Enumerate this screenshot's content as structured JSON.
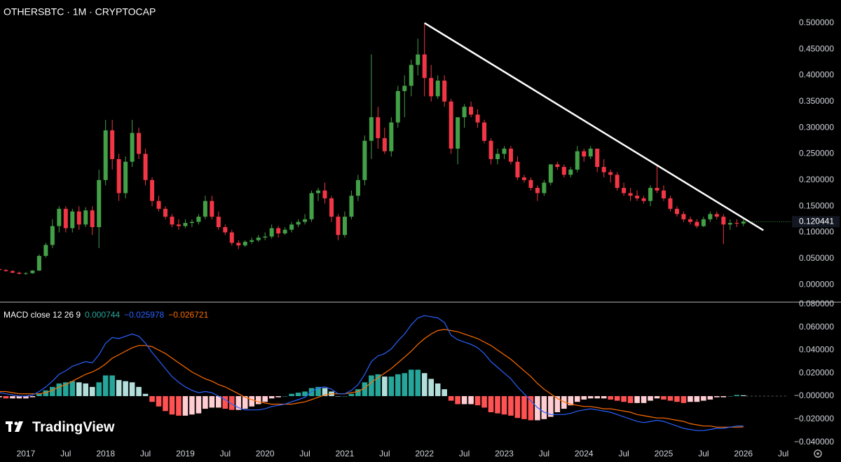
{
  "chart_data": [
    {
      "type": "candlestick",
      "title": "OTHERSBTC · 1M · CRYPTOCAP",
      "watermark": "TradingView",
      "x": [
        "2016-09",
        "2016-10",
        "2016-11",
        "2016-12",
        "2017-01",
        "2017-02",
        "2017-03",
        "2017-04",
        "2017-05",
        "2017-06",
        "2017-07",
        "2017-08",
        "2017-09",
        "2017-10",
        "2017-11",
        "2017-12",
        "2018-01",
        "2018-02",
        "2018-03",
        "2018-04",
        "2018-05",
        "2018-06",
        "2018-07",
        "2018-08",
        "2018-09",
        "2018-10",
        "2018-11",
        "2018-12",
        "2019-01",
        "2019-02",
        "2019-03",
        "2019-04",
        "2019-05",
        "2019-06",
        "2019-07",
        "2019-08",
        "2019-09",
        "2019-10",
        "2019-11",
        "2019-12",
        "2020-01",
        "2020-02",
        "2020-03",
        "2020-04",
        "2020-05",
        "2020-06",
        "2020-07",
        "2020-08",
        "2020-09",
        "2020-10",
        "2020-11",
        "2020-12",
        "2021-01",
        "2021-02",
        "2021-03",
        "2021-04",
        "2021-05",
        "2021-06",
        "2021-07",
        "2021-08",
        "2021-09",
        "2021-10",
        "2021-11",
        "2021-12",
        "2022-01",
        "2022-02",
        "2022-03",
        "2022-04",
        "2022-05",
        "2022-06",
        "2022-07",
        "2022-08",
        "2022-09",
        "2022-10",
        "2022-11",
        "2022-12",
        "2023-01",
        "2023-02",
        "2023-03",
        "2023-04",
        "2023-05",
        "2023-06",
        "2023-07",
        "2023-08",
        "2023-09",
        "2023-10",
        "2023-11",
        "2023-12",
        "2024-01",
        "2024-02",
        "2024-03",
        "2024-04",
        "2024-05",
        "2024-06",
        "2024-07",
        "2024-08",
        "2024-09",
        "2024-10",
        "2024-11",
        "2024-12",
        "2025-01",
        "2025-02",
        "2025-03",
        "2025-04",
        "2025-05",
        "2025-06",
        "2025-07",
        "2025-08",
        "2025-09",
        "2025-10",
        "2025-11",
        "2025-12",
        "2026-01"
      ],
      "open": [
        0.03,
        0.028,
        0.026,
        0.023,
        0.021,
        0.022,
        0.027,
        0.055,
        0.076,
        0.112,
        0.145,
        0.108,
        0.14,
        0.115,
        0.142,
        0.11,
        0.2,
        0.295,
        0.24,
        0.175,
        0.235,
        0.29,
        0.25,
        0.2,
        0.16,
        0.145,
        0.13,
        0.115,
        0.112,
        0.118,
        0.12,
        0.13,
        0.16,
        0.13,
        0.11,
        0.1,
        0.08,
        0.075,
        0.082,
        0.085,
        0.09,
        0.092,
        0.108,
        0.098,
        0.105,
        0.115,
        0.12,
        0.125,
        0.175,
        0.18,
        0.165,
        0.13,
        0.095,
        0.13,
        0.17,
        0.2,
        0.275,
        0.32,
        0.28,
        0.255,
        0.31,
        0.37,
        0.38,
        0.42,
        0.44,
        0.395,
        0.36,
        0.39,
        0.35,
        0.26,
        0.32,
        0.34,
        0.325,
        0.31,
        0.275,
        0.24,
        0.25,
        0.26,
        0.235,
        0.205,
        0.2,
        0.185,
        0.175,
        0.195,
        0.23,
        0.225,
        0.21,
        0.22,
        0.255,
        0.245,
        0.26,
        0.225,
        0.215,
        0.21,
        0.185,
        0.175,
        0.17,
        0.165,
        0.16,
        0.185,
        0.18,
        0.165,
        0.145,
        0.135,
        0.125,
        0.12,
        0.112,
        0.125,
        0.135,
        0.13,
        0.115,
        0.118,
        0.117
      ],
      "high": [
        0.034,
        0.03,
        0.028,
        0.025,
        0.024,
        0.028,
        0.058,
        0.08,
        0.125,
        0.15,
        0.15,
        0.145,
        0.15,
        0.148,
        0.15,
        0.22,
        0.315,
        0.315,
        0.25,
        0.245,
        0.315,
        0.3,
        0.26,
        0.205,
        0.17,
        0.15,
        0.135,
        0.125,
        0.125,
        0.125,
        0.135,
        0.17,
        0.17,
        0.14,
        0.115,
        0.105,
        0.085,
        0.085,
        0.09,
        0.095,
        0.1,
        0.115,
        0.112,
        0.11,
        0.12,
        0.125,
        0.135,
        0.18,
        0.185,
        0.195,
        0.17,
        0.135,
        0.14,
        0.18,
        0.21,
        0.285,
        0.44,
        0.34,
        0.3,
        0.32,
        0.38,
        0.4,
        0.43,
        0.47,
        0.5,
        0.42,
        0.4,
        0.4,
        0.355,
        0.32,
        0.345,
        0.35,
        0.335,
        0.315,
        0.28,
        0.26,
        0.265,
        0.265,
        0.245,
        0.21,
        0.205,
        0.19,
        0.2,
        0.23,
        0.235,
        0.23,
        0.225,
        0.265,
        0.26,
        0.265,
        0.26,
        0.24,
        0.22,
        0.215,
        0.195,
        0.185,
        0.18,
        0.17,
        0.19,
        0.23,
        0.19,
        0.17,
        0.15,
        0.14,
        0.13,
        0.125,
        0.13,
        0.14,
        0.14,
        0.135,
        0.125,
        0.125,
        0.125
      ],
      "low": [
        0.027,
        0.025,
        0.022,
        0.02,
        0.019,
        0.021,
        0.026,
        0.052,
        0.07,
        0.1,
        0.1,
        0.1,
        0.105,
        0.11,
        0.095,
        0.07,
        0.19,
        0.22,
        0.16,
        0.165,
        0.225,
        0.24,
        0.19,
        0.15,
        0.14,
        0.125,
        0.11,
        0.105,
        0.108,
        0.11,
        0.115,
        0.125,
        0.125,
        0.105,
        0.095,
        0.075,
        0.068,
        0.072,
        0.078,
        0.082,
        0.085,
        0.088,
        0.09,
        0.095,
        0.1,
        0.11,
        0.115,
        0.12,
        0.16,
        0.155,
        0.12,
        0.085,
        0.09,
        0.125,
        0.16,
        0.19,
        0.24,
        0.26,
        0.25,
        0.245,
        0.3,
        0.32,
        0.36,
        0.4,
        0.36,
        0.35,
        0.355,
        0.34,
        0.25,
        0.23,
        0.3,
        0.32,
        0.3,
        0.27,
        0.23,
        0.23,
        0.24,
        0.23,
        0.2,
        0.195,
        0.18,
        0.16,
        0.17,
        0.19,
        0.22,
        0.205,
        0.205,
        0.215,
        0.235,
        0.24,
        0.215,
        0.205,
        0.195,
        0.18,
        0.17,
        0.16,
        0.16,
        0.155,
        0.15,
        0.175,
        0.16,
        0.14,
        0.13,
        0.12,
        0.115,
        0.108,
        0.11,
        0.12,
        0.125,
        0.078,
        0.105,
        0.11,
        0.112
      ],
      "close": [
        0.028,
        0.026,
        0.023,
        0.021,
        0.022,
        0.027,
        0.055,
        0.076,
        0.112,
        0.145,
        0.108,
        0.14,
        0.115,
        0.142,
        0.11,
        0.2,
        0.295,
        0.24,
        0.175,
        0.235,
        0.29,
        0.25,
        0.2,
        0.16,
        0.145,
        0.13,
        0.115,
        0.112,
        0.118,
        0.12,
        0.13,
        0.16,
        0.13,
        0.11,
        0.1,
        0.08,
        0.075,
        0.082,
        0.085,
        0.09,
        0.092,
        0.108,
        0.098,
        0.105,
        0.115,
        0.12,
        0.125,
        0.175,
        0.18,
        0.165,
        0.13,
        0.095,
        0.13,
        0.17,
        0.2,
        0.275,
        0.32,
        0.28,
        0.255,
        0.31,
        0.37,
        0.38,
        0.42,
        0.44,
        0.395,
        0.36,
        0.39,
        0.35,
        0.26,
        0.32,
        0.34,
        0.325,
        0.31,
        0.275,
        0.24,
        0.25,
        0.26,
        0.235,
        0.205,
        0.2,
        0.185,
        0.175,
        0.195,
        0.23,
        0.225,
        0.21,
        0.22,
        0.255,
        0.245,
        0.26,
        0.225,
        0.215,
        0.21,
        0.185,
        0.175,
        0.17,
        0.165,
        0.16,
        0.185,
        0.18,
        0.165,
        0.145,
        0.135,
        0.125,
        0.12,
        0.112,
        0.125,
        0.135,
        0.13,
        0.115,
        0.118,
        0.117,
        0.120441
      ],
      "up_color": "#43a047",
      "down_color": "#f23645",
      "trendline": {
        "x": [
          "2022-01",
          "2026-04"
        ],
        "values": [
          0.5,
          0.104
        ],
        "color": "#ffffff"
      },
      "ylim": [
        -0.032,
        0.544
      ],
      "yticks": [
        {
          "value": 0,
          "label": "0.000000"
        },
        {
          "value": 0.05,
          "label": "0.050000"
        },
        {
          "value": 0.1,
          "label": "0.100000"
        },
        {
          "value": 0.15,
          "label": "0.150000"
        },
        {
          "value": 0.2,
          "label": "0.200000"
        },
        {
          "value": 0.25,
          "label": "0.250000"
        },
        {
          "value": 0.3,
          "label": "0.300000"
        },
        {
          "value": 0.35,
          "label": "0.350000"
        },
        {
          "value": 0.4,
          "label": "0.400000"
        },
        {
          "value": 0.45,
          "label": "0.450000"
        },
        {
          "value": 0.5,
          "label": "0.500000"
        }
      ],
      "xticks": [
        {
          "value": "2017-01",
          "label": "2017"
        },
        {
          "value": "2017-07",
          "label": "Jul"
        },
        {
          "value": "2018-01",
          "label": "2018"
        },
        {
          "value": "2018-07",
          "label": "Jul"
        },
        {
          "value": "2019-01",
          "label": "2019"
        },
        {
          "value": "2019-07",
          "label": "Jul"
        },
        {
          "value": "2020-01",
          "label": "2020"
        },
        {
          "value": "2020-07",
          "label": "Jul"
        },
        {
          "value": "2021-01",
          "label": "2021"
        },
        {
          "value": "2021-07",
          "label": "Jul"
        },
        {
          "value": "2022-01",
          "label": "2022"
        },
        {
          "value": "2022-07",
          "label": "Jul"
        },
        {
          "value": "2023-01",
          "label": "2023"
        },
        {
          "value": "2023-07",
          "label": "Jul"
        },
        {
          "value": "2024-01",
          "label": "2024"
        },
        {
          "value": "2024-07",
          "label": "Jul"
        },
        {
          "value": "2025-01",
          "label": "2025"
        },
        {
          "value": "2025-07",
          "label": "Jul"
        },
        {
          "value": "2026-01",
          "label": "2026"
        },
        {
          "value": "2026-07",
          "label": "Jul"
        }
      ],
      "grid": false
    },
    {
      "type": "macd",
      "legend": {
        "title": "MACD close 12 26 9",
        "values": [
          "0.000744",
          "−0.025978",
          "−0.026721"
        ]
      },
      "histogram": [
        -0.001,
        -0.002,
        -0.002,
        -0.002,
        -0.002,
        -0.001,
        0.002,
        0.005,
        0.008,
        0.011,
        0.012,
        0.013,
        0.012,
        0.011,
        0.008,
        0.012,
        0.018,
        0.018,
        0.014,
        0.013,
        0.012,
        0.008,
        0.002,
        -0.005,
        -0.009,
        -0.013,
        -0.016,
        -0.017,
        -0.017,
        -0.016,
        -0.015,
        -0.011,
        -0.01,
        -0.01,
        -0.011,
        -0.012,
        -0.012,
        -0.011,
        -0.009,
        -0.007,
        -0.005,
        -0.002,
        -0.001,
        0.0,
        0.002,
        0.003,
        0.004,
        0.007,
        0.008,
        0.007,
        0.004,
        0.0,
        0.0,
        0.002,
        0.006,
        0.012,
        0.018,
        0.019,
        0.017,
        0.017,
        0.019,
        0.02,
        0.023,
        0.023,
        0.02,
        0.015,
        0.011,
        0.006,
        -0.004,
        -0.007,
        -0.007,
        -0.007,
        -0.008,
        -0.01,
        -0.014,
        -0.015,
        -0.016,
        -0.017,
        -0.019,
        -0.02,
        -0.021,
        -0.021,
        -0.02,
        -0.018,
        -0.014,
        -0.011,
        -0.008,
        -0.005,
        -0.003,
        -0.002,
        -0.002,
        -0.002,
        -0.003,
        -0.004,
        -0.005,
        -0.006,
        -0.006,
        -0.006,
        -0.004,
        -0.002,
        -0.003,
        -0.004,
        -0.005,
        -0.006,
        -0.005,
        -0.005,
        -0.004,
        -0.003,
        -0.001,
        -0.001,
        0.0,
        0.001,
        0.000744
      ],
      "macd": [
        0.003,
        0.002,
        0.001,
        0.0,
        0.0,
        0.001,
        0.004,
        0.008,
        0.013,
        0.019,
        0.022,
        0.026,
        0.028,
        0.03,
        0.029,
        0.036,
        0.046,
        0.051,
        0.05,
        0.052,
        0.054,
        0.052,
        0.046,
        0.038,
        0.031,
        0.024,
        0.017,
        0.012,
        0.008,
        0.005,
        0.003,
        0.004,
        0.003,
        0.0,
        -0.003,
        -0.007,
        -0.01,
        -0.012,
        -0.012,
        -0.012,
        -0.011,
        -0.009,
        -0.008,
        -0.007,
        -0.005,
        -0.003,
        -0.001,
        0.004,
        0.007,
        0.008,
        0.006,
        0.002,
        0.002,
        0.005,
        0.01,
        0.019,
        0.03,
        0.035,
        0.037,
        0.041,
        0.048,
        0.054,
        0.062,
        0.068,
        0.07,
        0.069,
        0.068,
        0.064,
        0.053,
        0.049,
        0.047,
        0.045,
        0.042,
        0.037,
        0.03,
        0.025,
        0.02,
        0.015,
        0.008,
        0.002,
        -0.004,
        -0.01,
        -0.014,
        -0.016,
        -0.016,
        -0.016,
        -0.015,
        -0.013,
        -0.012,
        -0.011,
        -0.012,
        -0.013,
        -0.014,
        -0.016,
        -0.018,
        -0.02,
        -0.022,
        -0.023,
        -0.022,
        -0.021,
        -0.022,
        -0.024,
        -0.026,
        -0.028,
        -0.029,
        -0.03,
        -0.03,
        -0.029,
        -0.028,
        -0.028,
        -0.027,
        -0.026,
        -0.025978
      ],
      "signal": [
        0.004,
        0.004,
        0.003,
        0.002,
        0.002,
        0.002,
        0.002,
        0.003,
        0.005,
        0.008,
        0.01,
        0.013,
        0.016,
        0.019,
        0.021,
        0.024,
        0.028,
        0.033,
        0.036,
        0.039,
        0.042,
        0.044,
        0.044,
        0.043,
        0.04,
        0.037,
        0.033,
        0.029,
        0.025,
        0.021,
        0.018,
        0.015,
        0.013,
        0.01,
        0.008,
        0.005,
        0.002,
        -0.001,
        -0.003,
        -0.005,
        -0.006,
        -0.007,
        -0.007,
        -0.007,
        -0.007,
        -0.006,
        -0.005,
        -0.003,
        -0.001,
        0.001,
        0.002,
        0.002,
        0.002,
        0.003,
        0.004,
        0.007,
        0.012,
        0.016,
        0.02,
        0.024,
        0.029,
        0.034,
        0.039,
        0.045,
        0.05,
        0.054,
        0.057,
        0.058,
        0.057,
        0.056,
        0.054,
        0.052,
        0.05,
        0.047,
        0.044,
        0.04,
        0.036,
        0.032,
        0.027,
        0.022,
        0.017,
        0.011,
        0.006,
        0.002,
        -0.002,
        -0.005,
        -0.007,
        -0.008,
        -0.009,
        -0.009,
        -0.01,
        -0.011,
        -0.011,
        -0.012,
        -0.013,
        -0.014,
        -0.016,
        -0.017,
        -0.018,
        -0.019,
        -0.019,
        -0.02,
        -0.021,
        -0.022,
        -0.024,
        -0.025,
        -0.026,
        -0.026,
        -0.027,
        -0.027,
        -0.027,
        -0.027,
        -0.026721
      ],
      "hist_colors": {
        "grow_above": "#26a69a",
        "fall_above": "#b2dfdb",
        "grow_below": "#ffcdd2",
        "fall_below": "#ff5252"
      },
      "macd_color": "#2962ff",
      "signal_color": "#ff6d00",
      "ylim": [
        -0.0457,
        0.0817
      ],
      "yticks": [
        {
          "value": 0.08,
          "label": "0.080000"
        },
        {
          "value": 0.06,
          "label": "0.060000"
        },
        {
          "value": 0.04,
          "label": "0.040000"
        },
        {
          "value": 0.02,
          "label": "0.020000"
        },
        {
          "value": 0,
          "label": "−0.000000"
        },
        {
          "value": -0.02,
          "label": "−0.020000"
        },
        {
          "value": -0.04,
          "label": "−0.040000"
        }
      ]
    }
  ]
}
